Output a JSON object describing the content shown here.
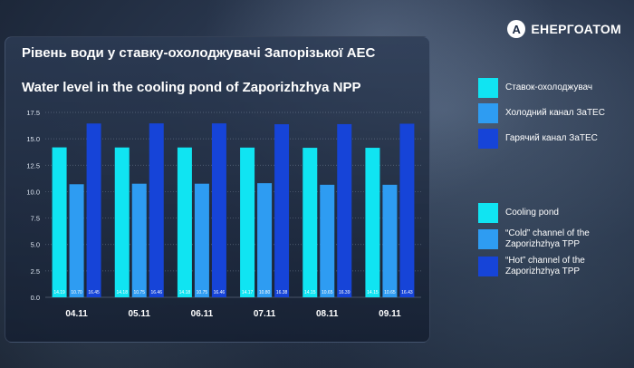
{
  "brand": {
    "name": "ЕНЕРГОАТОМ",
    "logo_letter": "A"
  },
  "colors": {
    "cooling_pond": "#10e4f2",
    "cold_channel": "#2e9cf2",
    "hot_channel": "#1644d8"
  },
  "legend_uk": [
    {
      "label": "Ставок-охолоджувач",
      "color": "#10e4f2"
    },
    {
      "label": "Холодний канал ЗаТЕС",
      "color": "#2e9cf2"
    },
    {
      "label": "Гарячий канал ЗаТЕС",
      "color": "#1644d8"
    }
  ],
  "legend_en": [
    {
      "label": "Cooling pond",
      "color": "#10e4f2"
    },
    {
      "label": "“Cold” channel of the Zaporizhzhya TPP",
      "color": "#2e9cf2"
    },
    {
      "label": "“Hot” channel of the Zaporizhzhya TPP",
      "color": "#1644d8"
    }
  ],
  "chart_data": {
    "type": "bar",
    "title": "Рівень води у ставку-охолоджувачі Запорізької АЕС",
    "subtitle": "Water level in the cooling pond of Zaporizhzhya NPP",
    "categories": [
      "04.11",
      "05.11",
      "06.11",
      "07.11",
      "08.11",
      "09.11"
    ],
    "series": [
      {
        "name": "Ставок-охолоджувач",
        "color": "#10e4f2",
        "values": [
          14.19,
          14.18,
          14.18,
          14.17,
          14.15,
          14.15
        ]
      },
      {
        "name": "Холодний канал ЗаТЕС",
        "color": "#2e9cf2",
        "values": [
          10.7,
          10.75,
          10.75,
          10.8,
          10.65,
          10.65
        ]
      },
      {
        "name": "Гарячий канал ЗаТЕС",
        "color": "#1644d8",
        "values": [
          16.45,
          16.46,
          16.46,
          16.38,
          16.39,
          16.43
        ]
      }
    ],
    "ylim": [
      0,
      17.5
    ],
    "yticks": [
      "0.0",
      "2.5",
      "5.0",
      "7.5",
      "10.0",
      "12.5",
      "15.0",
      "17.5"
    ],
    "grid": true,
    "xlabel": "",
    "ylabel": ""
  }
}
